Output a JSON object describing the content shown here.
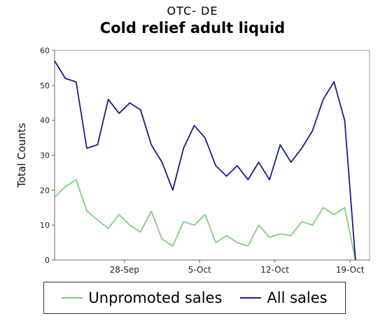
{
  "chart_data": {
    "type": "line",
    "subtitle": "OTC- DE",
    "title": "Cold relief adult liquid",
    "xlabel": "",
    "ylabel": "Total Counts",
    "ylim": [
      0,
      60
    ],
    "yticks": [
      0,
      10,
      20,
      30,
      40,
      50,
      60
    ],
    "x_tick_labels": [
      "28-Sep",
      "5-Oct",
      "12-Oct",
      "19-Oct"
    ],
    "x_tick_positions": [
      6.5,
      13.5,
      20.5,
      27.5
    ],
    "xlim": [
      0,
      30
    ],
    "grid": false,
    "legend_position": "bottom",
    "series": [
      {
        "name": "Unpromoted sales",
        "color": "#7ecf7e",
        "values": [
          18,
          21,
          23,
          14,
          11.5,
          9,
          13,
          10,
          8,
          14,
          6,
          4,
          11,
          10,
          13,
          5,
          7,
          5,
          4,
          10,
          6.5,
          7.5,
          7,
          11,
          10,
          15,
          13,
          15,
          0
        ]
      },
      {
        "name": "All sales",
        "color": "#1a1a8c",
        "values": [
          57,
          52,
          51,
          32,
          33,
          46,
          42,
          45,
          43,
          33,
          28,
          20,
          32,
          38.5,
          35,
          27,
          24,
          27,
          23,
          28,
          23,
          33,
          28,
          32,
          37,
          46,
          51,
          40,
          0
        ]
      }
    ]
  }
}
